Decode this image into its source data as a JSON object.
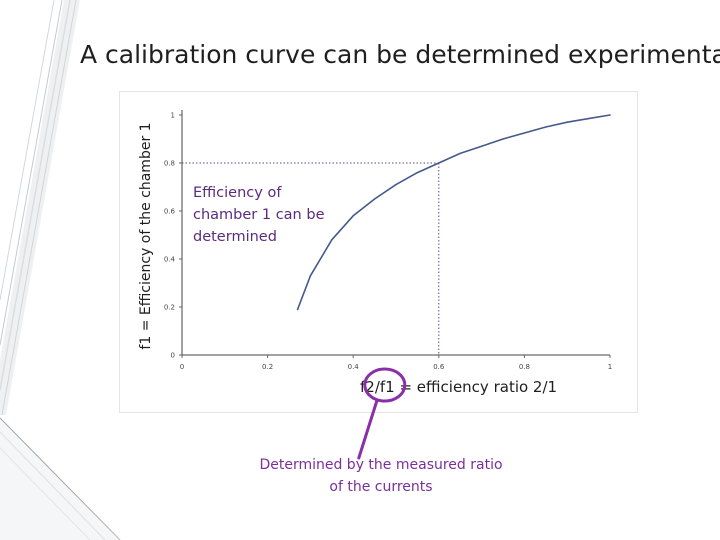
{
  "slide": {
    "title": "A calibration curve can be determined experimentally",
    "annotation": "Efficiency of chamber 1 can be determined",
    "callout": "Determined by the measured ratio of the currents"
  },
  "colors": {
    "curve": "#46598c",
    "guide": "#5a4a9a",
    "highlight": "#8a2fa8",
    "annotation": "#5b2b7c",
    "callout": "#7b2f9a",
    "decor": "#c9cdd2"
  },
  "chart_data": {
    "type": "line",
    "xlabel": "f2/f1 = efficiency ratio 2/1",
    "ylabel": "f1 = Efficiency of the chamber 1",
    "xlim": [
      0,
      1
    ],
    "ylim": [
      0,
      1
    ],
    "x_ticks": [
      "0",
      "0.2",
      "0.4",
      "0.6",
      "0.8",
      "1"
    ],
    "y_ticks": [
      "0",
      "0.2",
      "0.4",
      "0.6",
      "0.8",
      "1"
    ],
    "grid": false,
    "series": [
      {
        "x": [
          0.27,
          0.3,
          0.35,
          0.4,
          0.45,
          0.5,
          0.55,
          0.6,
          0.65,
          0.7,
          0.75,
          0.8,
          0.85,
          0.9,
          0.95,
          1.0
        ],
        "y": [
          0.19,
          0.33,
          0.48,
          0.58,
          0.65,
          0.71,
          0.76,
          0.8,
          0.84,
          0.87,
          0.9,
          0.925,
          0.95,
          0.97,
          0.985,
          1.0
        ]
      }
    ],
    "guide_point": {
      "x": 0.6,
      "y": 0.8
    },
    "highlighted_tick": "0.6"
  }
}
